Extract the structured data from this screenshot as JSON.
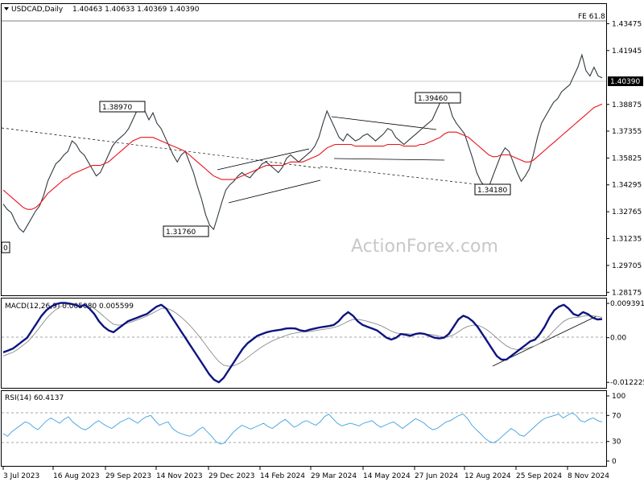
{
  "header": {
    "symbol": "USDCAD,Daily",
    "ohlc": "1.40463 1.40633 1.40369 1.40390"
  },
  "watermark": "ActionForex.com",
  "fe_label": "FE 61.8",
  "current_price_label": "1.40390",
  "chart_data": [
    {
      "type": "line",
      "name": "price",
      "y_ticks": [
        "1.43475",
        "1.41945",
        "1.40390",
        "1.38875",
        "1.37355",
        "1.35825",
        "1.34295",
        "1.32765",
        "1.31235",
        "1.29705",
        "1.28175"
      ],
      "ylim": [
        1.2805,
        1.4455
      ],
      "x_tick_labels": [
        "3 Jul 2023",
        "16 Aug 2023",
        "29 Sep 2023",
        "14 Nov 2023",
        "29 Dec 2023",
        "14 Feb 2024",
        "29 Mar 2024",
        "14 May 2024",
        "27 Jun 2024",
        "12 Aug 2024",
        "25 Sep 2024",
        "8 Nov 2024"
      ],
      "series": [
        {
          "values": [
            1.332,
            1.329,
            1.327,
            1.322,
            1.318,
            1.316,
            1.32,
            1.324,
            1.328,
            1.331,
            1.337,
            1.345,
            1.35,
            1.355,
            1.357,
            1.36,
            1.362,
            1.368,
            1.366,
            1.362,
            1.36,
            1.356,
            1.352,
            1.348,
            1.35,
            1.355,
            1.36,
            1.365,
            1.368,
            1.37,
            1.372,
            1.375,
            1.38,
            1.385,
            1.3897,
            1.385,
            1.38,
            1.384,
            1.378,
            1.375,
            1.37,
            1.365,
            1.36,
            1.356,
            1.36,
            1.362,
            1.356,
            1.35,
            1.342,
            1.335,
            1.326,
            1.32,
            1.3176,
            1.325,
            1.333,
            1.34,
            1.343,
            1.345,
            1.348,
            1.35,
            1.348,
            1.347,
            1.35,
            1.352,
            1.355,
            1.356,
            1.354,
            1.352,
            1.35,
            1.353,
            1.358,
            1.36,
            1.358,
            1.356,
            1.358,
            1.36,
            1.362,
            1.365,
            1.37,
            1.378,
            1.385,
            1.38,
            1.375,
            1.37,
            1.368,
            1.372,
            1.37,
            1.368,
            1.369,
            1.371,
            1.372,
            1.37,
            1.368,
            1.37,
            1.372,
            1.375,
            1.374,
            1.37,
            1.368,
            1.366,
            1.368,
            1.37,
            1.372,
            1.374,
            1.376,
            1.378,
            1.38,
            1.385,
            1.39,
            1.3946,
            1.39,
            1.382,
            1.378,
            1.375,
            1.372,
            1.365,
            1.358,
            1.35,
            1.345,
            1.342,
            1.3418,
            1.348,
            1.354,
            1.36,
            1.364,
            1.362,
            1.356,
            1.35,
            1.345,
            1.348,
            1.352,
            1.36,
            1.37,
            1.378,
            1.382,
            1.386,
            1.39,
            1.392,
            1.396,
            1.398,
            1.4,
            1.405,
            1.41,
            1.417,
            1.408,
            1.405,
            1.41,
            1.405,
            1.4039
          ]
        },
        {
          "name": "MA",
          "values": [
            1.34,
            1.338,
            1.336,
            1.334,
            1.332,
            1.33,
            1.329,
            1.329,
            1.33,
            1.332,
            1.335,
            1.338,
            1.34,
            1.342,
            1.344,
            1.346,
            1.347,
            1.349,
            1.35,
            1.351,
            1.352,
            1.353,
            1.354,
            1.354,
            1.354,
            1.355,
            1.356,
            1.358,
            1.36,
            1.362,
            1.364,
            1.366,
            1.368,
            1.369,
            1.37,
            1.37,
            1.37,
            1.37,
            1.369,
            1.368,
            1.367,
            1.366,
            1.365,
            1.364,
            1.363,
            1.362,
            1.36,
            1.358,
            1.356,
            1.354,
            1.352,
            1.35,
            1.348,
            1.347,
            1.346,
            1.346,
            1.346,
            1.346,
            1.347,
            1.348,
            1.349,
            1.35,
            1.351,
            1.352,
            1.353,
            1.354,
            1.354,
            1.354,
            1.354,
            1.354,
            1.355,
            1.356,
            1.356,
            1.356,
            1.356,
            1.357,
            1.358,
            1.359,
            1.36,
            1.362,
            1.364,
            1.365,
            1.366,
            1.366,
            1.366,
            1.366,
            1.366,
            1.365,
            1.365,
            1.365,
            1.365,
            1.365,
            1.365,
            1.365,
            1.365,
            1.366,
            1.366,
            1.366,
            1.366,
            1.365,
            1.365,
            1.365,
            1.365,
            1.366,
            1.366,
            1.367,
            1.368,
            1.369,
            1.37,
            1.372,
            1.373,
            1.373,
            1.373,
            1.372,
            1.371,
            1.37,
            1.368,
            1.366,
            1.364,
            1.362,
            1.36,
            1.359,
            1.359,
            1.36,
            1.36,
            1.36,
            1.359,
            1.358,
            1.357,
            1.356,
            1.356,
            1.357,
            1.359,
            1.361,
            1.363,
            1.365,
            1.367,
            1.369,
            1.371,
            1.373,
            1.375,
            1.377,
            1.379,
            1.381,
            1.383,
            1.385,
            1.387,
            1.388,
            1.389
          ]
        }
      ],
      "annotations": [
        "1.38970",
        "1.31760",
        "1.39460",
        "1.34180",
        "0"
      ]
    },
    {
      "type": "line",
      "name": "MACD",
      "title": "MACD(12,26,9) 0.005080 0.005599",
      "y_ticks": [
        "0.009391",
        "0.00",
        "-0.012225"
      ],
      "ylim": [
        -0.0135,
        0.0105
      ],
      "series": [
        {
          "name": "macd",
          "values": [
            -0.004,
            -0.0035,
            -0.003,
            -0.002,
            -0.001,
            0.0,
            0.002,
            0.004,
            0.006,
            0.0075,
            0.0085,
            0.0092,
            0.0095,
            0.0095,
            0.0093,
            0.009,
            0.0085,
            0.009,
            0.008,
            0.0065,
            0.0045,
            0.003,
            0.002,
            0.0015,
            0.0025,
            0.0035,
            0.0045,
            0.005,
            0.0055,
            0.006,
            0.0065,
            0.0075,
            0.0085,
            0.009,
            0.008,
            0.006,
            0.004,
            0.002,
            0.0,
            -0.002,
            -0.004,
            -0.006,
            -0.008,
            -0.01,
            -0.0115,
            -0.0122,
            -0.011,
            -0.009,
            -0.007,
            -0.005,
            -0.003,
            -0.0015,
            -0.0005,
            0.0005,
            0.001,
            0.0015,
            0.0018,
            0.002,
            0.0022,
            0.0025,
            0.0026,
            0.0025,
            0.002,
            0.0018,
            0.0022,
            0.0025,
            0.0028,
            0.003,
            0.0032,
            0.0035,
            0.0045,
            0.006,
            0.007,
            0.006,
            0.0045,
            0.0035,
            0.003,
            0.0025,
            0.002,
            0.001,
            0.0,
            -0.0005,
            0.0,
            0.001,
            0.0008,
            0.0005,
            0.001,
            0.0012,
            0.001,
            0.0005,
            0.0,
            -0.0002,
            0.0,
            0.001,
            0.003,
            0.005,
            0.006,
            0.0055,
            0.0045,
            0.003,
            0.001,
            -0.001,
            -0.003,
            -0.005,
            -0.006,
            -0.006,
            -0.005,
            -0.004,
            -0.003,
            -0.002,
            -0.001,
            -0.0005,
            0.001,
            0.003,
            0.0055,
            0.0075,
            0.0085,
            0.009,
            0.008,
            0.0065,
            0.006,
            0.007,
            0.0065,
            0.0055,
            0.005,
            0.0051
          ]
        },
        {
          "name": "signal",
          "values": [
            -0.005,
            -0.0045,
            -0.004,
            -0.0032,
            -0.0022,
            -0.0012,
            0.0002,
            0.0018,
            0.0035,
            0.0052,
            0.0066,
            0.0077,
            0.0085,
            0.009,
            0.0092,
            0.0091,
            0.0089,
            0.0089,
            0.0087,
            0.008,
            0.007,
            0.0058,
            0.0047,
            0.0037,
            0.0034,
            0.0036,
            0.004,
            0.0044,
            0.0049,
            0.0054,
            0.0059,
            0.0066,
            0.0073,
            0.008,
            0.0081,
            0.0076,
            0.0068,
            0.0058,
            0.0046,
            0.0033,
            0.0018,
            0.0002,
            -0.0015,
            -0.0033,
            -0.005,
            -0.0065,
            -0.0075,
            -0.0078,
            -0.0077,
            -0.0072,
            -0.0064,
            -0.0054,
            -0.0044,
            -0.0034,
            -0.0025,
            -0.0017,
            -0.001,
            -0.0004,
            0.0001,
            0.0006,
            0.001,
            0.0013,
            0.0015,
            0.0016,
            0.0017,
            0.0019,
            0.0021,
            0.0023,
            0.0025,
            0.0028,
            0.0032,
            0.0038,
            0.0045,
            0.005,
            0.005,
            0.0048,
            0.0045,
            0.0041,
            0.0037,
            0.0032,
            0.0025,
            0.0018,
            0.0013,
            0.0011,
            0.0011,
            0.001,
            0.001,
            0.001,
            0.001,
            0.0009,
            0.0007,
            0.0004,
            0.0002,
            0.0003,
            0.0008,
            0.0016,
            0.0025,
            0.0031,
            0.0034,
            0.0034,
            0.0029,
            0.0021,
            0.0011,
            -0.0001,
            -0.0012,
            -0.0022,
            -0.0029,
            -0.0032,
            -0.0033,
            -0.003,
            -0.0026,
            -0.0022,
            -0.0015,
            -0.0006,
            0.0006,
            0.002,
            0.0033,
            0.0045,
            0.0052,
            0.0055,
            0.0056,
            0.0059,
            0.0061,
            0.006,
            0.0058,
            0.0056
          ]
        }
      ]
    },
    {
      "type": "line",
      "name": "RSI",
      "title": "RSI(14) 60.4137",
      "y_ticks": [
        "100",
        "70",
        "30",
        "0"
      ],
      "ylim": [
        0,
        100
      ],
      "levels": [
        70,
        30
      ],
      "values": [
        42,
        38,
        45,
        50,
        55,
        60,
        58,
        52,
        48,
        55,
        62,
        66,
        62,
        58,
        64,
        68,
        60,
        55,
        50,
        48,
        52,
        58,
        62,
        57,
        53,
        50,
        55,
        60,
        63,
        66,
        62,
        58,
        64,
        68,
        70,
        62,
        55,
        58,
        60,
        50,
        45,
        42,
        40,
        38,
        42,
        48,
        52,
        45,
        38,
        30,
        26,
        28,
        36,
        44,
        50,
        55,
        52,
        49,
        52,
        55,
        58,
        53,
        50,
        55,
        60,
        64,
        58,
        52,
        55,
        60,
        62,
        58,
        55,
        60,
        68,
        72,
        65,
        58,
        54,
        56,
        58,
        56,
        54,
        58,
        60,
        62,
        56,
        52,
        55,
        58,
        60,
        55,
        50,
        55,
        60,
        65,
        62,
        58,
        52,
        48,
        50,
        55,
        60,
        62,
        66,
        70,
        72,
        65,
        55,
        48,
        42,
        35,
        30,
        28,
        32,
        38,
        44,
        50,
        46,
        40,
        38,
        44,
        50,
        56,
        62,
        66,
        68,
        70,
        72,
        66,
        70,
        74,
        70,
        62,
        60,
        64,
        66,
        62,
        60
      ]
    }
  ]
}
